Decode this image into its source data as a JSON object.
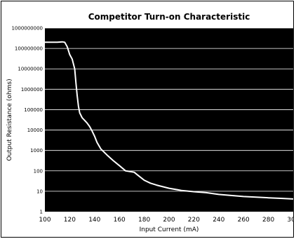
{
  "chart_data": {
    "type": "line",
    "title": "Competitor Turn-on Characteristic",
    "xlabel": "Input Current (mA)",
    "ylabel": "Output Resistance (ohms)",
    "xlim": [
      100,
      300
    ],
    "ylim": [
      1,
      1000000000
    ],
    "y_scale": "log",
    "x_ticks": [
      "100",
      "120",
      "140",
      "160",
      "180",
      "200",
      "220",
      "240",
      "260",
      "280",
      "300"
    ],
    "y_ticks": [
      "1",
      "10",
      "100",
      "1000",
      "10000",
      "100000",
      "1000000",
      "10000000",
      "100000000",
      "1000000000"
    ],
    "grid": "horizontal",
    "plot_background": "#000000",
    "line_color": "#ffffff",
    "series": [
      {
        "x": [
          100,
          110,
          114,
          116,
          118,
          120,
          122,
          124,
          125,
          126,
          127,
          128,
          130,
          132,
          134,
          136,
          138,
          140,
          142,
          145,
          150,
          155,
          160,
          165,
          170,
          172,
          175,
          180,
          185,
          190,
          200,
          210,
          220,
          230,
          240,
          250,
          260,
          270,
          280,
          290,
          300
        ],
        "y": [
          200000000,
          200000000,
          210000000,
          200000000,
          120000000,
          50000000,
          30000000,
          10000000,
          2000000,
          500000,
          150000,
          70000,
          40000,
          30000,
          22000,
          15000,
          9000,
          5000,
          2500,
          1200,
          600,
          320,
          180,
          100,
          90,
          85,
          60,
          35,
          25,
          20,
          14,
          11,
          9.5,
          8.5,
          7,
          6.2,
          5.5,
          5.2,
          4.8,
          4.5,
          4.2
        ]
      }
    ]
  }
}
